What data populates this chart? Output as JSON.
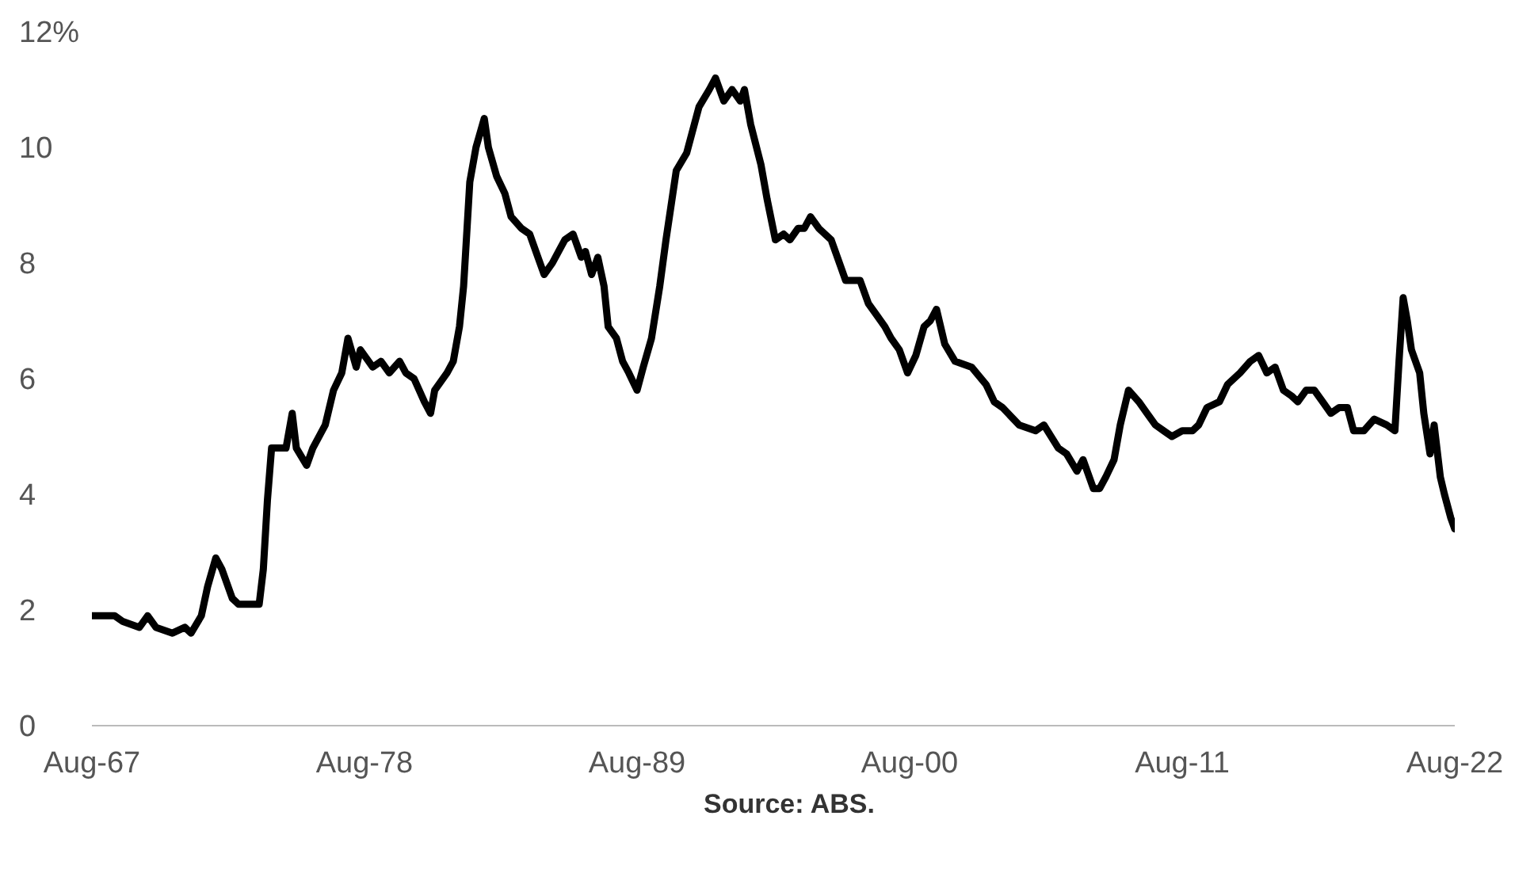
{
  "chart_data": {
    "type": "line",
    "annotations": [
      "Source: ABS."
    ],
    "x": [
      "1967-08",
      "1967-12",
      "1968-07",
      "1968-11",
      "1969-07",
      "1969-11",
      "1970-03",
      "1970-11",
      "1971-05",
      "1971-08",
      "1972-01",
      "1972-04",
      "1972-08",
      "1972-11",
      "1973-04",
      "1973-07",
      "1974-05",
      "1974-07",
      "1974-09",
      "1974-11",
      "1975-06",
      "1975-09",
      "1975-11",
      "1976-04",
      "1976-07",
      "1977-01",
      "1977-05",
      "1977-09",
      "1977-12",
      "1978-04",
      "1978-06",
      "1978-12",
      "1979-04",
      "1979-08",
      "1980-01",
      "1980-04",
      "1980-08",
      "1981-01",
      "1981-04",
      "1981-06",
      "1981-12",
      "1982-03",
      "1982-06",
      "1982-08",
      "1982-11",
      "1983-02",
      "1983-06",
      "1983-08",
      "1983-12",
      "1984-04",
      "1984-07",
      "1984-12",
      "1985-04",
      "1985-08",
      "1985-11",
      "1986-03",
      "1986-06",
      "1986-09",
      "1987-01",
      "1987-05",
      "1987-07",
      "1987-10",
      "1988-01",
      "1988-04",
      "1988-06",
      "1988-10",
      "1989-01",
      "1989-04",
      "1989-08",
      "1989-11",
      "1990-03",
      "1990-07",
      "1990-10",
      "1991-03",
      "1991-08",
      "1992-02",
      "1992-07",
      "1992-10",
      "1993-02",
      "1993-06",
      "1993-10",
      "1993-12",
      "1994-03",
      "1994-08",
      "1994-11",
      "1995-03",
      "1995-07",
      "1995-10",
      "1996-02",
      "1996-05",
      "1996-08",
      "1996-12",
      "1997-03",
      "1997-06",
      "1997-10",
      "1998-01",
      "1998-08",
      "1998-12",
      "1999-04",
      "1999-08",
      "1999-11",
      "2000-03",
      "2000-07",
      "2000-11",
      "2001-03",
      "2001-06",
      "2001-09",
      "2002-01",
      "2002-06",
      "2003-02",
      "2003-09",
      "2004-01",
      "2004-05",
      "2005-01",
      "2005-09",
      "2006-01",
      "2006-08",
      "2006-12",
      "2007-05",
      "2007-08",
      "2008-01",
      "2008-04",
      "2008-07",
      "2008-11",
      "2009-02",
      "2009-06",
      "2009-11",
      "2010-03",
      "2010-07",
      "2010-11",
      "2011-03",
      "2011-08",
      "2012-01",
      "2012-04",
      "2012-08",
      "2013-02",
      "2013-06",
      "2013-12",
      "2014-05",
      "2014-09",
      "2015-01",
      "2015-05",
      "2015-09",
      "2016-01",
      "2016-04",
      "2016-08",
      "2016-12",
      "2017-04",
      "2017-08",
      "2017-12",
      "2018-04",
      "2018-07",
      "2018-12",
      "2019-05",
      "2019-11",
      "2020-03",
      "2020-05",
      "2020-07",
      "2020-09",
      "2020-11",
      "2021-03",
      "2021-05",
      "2021-08",
      "2021-10",
      "2022-01",
      "2022-03",
      "2022-06",
      "2022-08"
    ],
    "series": [
      {
        "color": "#000000",
        "values": [
          1.9,
          1.9,
          1.9,
          1.8,
          1.7,
          1.9,
          1.7,
          1.6,
          1.7,
          1.6,
          1.9,
          2.4,
          2.9,
          2.7,
          2.2,
          2.1,
          2.1,
          2.7,
          3.9,
          4.8,
          4.8,
          5.4,
          4.8,
          4.5,
          4.8,
          5.2,
          5.8,
          6.1,
          6.7,
          6.2,
          6.5,
          6.2,
          6.3,
          6.1,
          6.3,
          6.1,
          6.0,
          5.6,
          5.4,
          5.8,
          6.1,
          6.3,
          6.9,
          7.6,
          9.4,
          10.0,
          10.5,
          10.0,
          9.5,
          9.2,
          8.8,
          8.6,
          8.5,
          8.1,
          7.8,
          8.0,
          8.2,
          8.4,
          8.5,
          8.1,
          8.2,
          7.8,
          8.1,
          7.6,
          6.9,
          6.7,
          6.3,
          6.1,
          5.8,
          6.2,
          6.7,
          7.6,
          8.4,
          9.6,
          9.9,
          10.7,
          11.0,
          11.2,
          10.8,
          11.0,
          10.8,
          11.0,
          10.4,
          9.7,
          9.1,
          8.4,
          8.5,
          8.4,
          8.6,
          8.6,
          8.8,
          8.6,
          8.5,
          8.4,
          8.0,
          7.7,
          7.7,
          7.3,
          7.1,
          6.9,
          6.7,
          6.5,
          6.1,
          6.4,
          6.9,
          7.0,
          7.2,
          6.6,
          6.3,
          6.2,
          5.9,
          5.6,
          5.5,
          5.2,
          5.1,
          5.2,
          4.8,
          4.7,
          4.4,
          4.6,
          4.1,
          4.1,
          4.3,
          4.6,
          5.2,
          5.8,
          5.6,
          5.4,
          5.2,
          5.1,
          5.0,
          5.1,
          5.1,
          5.2,
          5.5,
          5.6,
          5.9,
          6.1,
          6.3,
          6.4,
          6.1,
          6.2,
          5.8,
          5.7,
          5.6,
          5.8,
          5.8,
          5.6,
          5.4,
          5.5,
          5.5,
          5.1,
          5.1,
          5.3,
          5.2,
          5.1,
          6.3,
          7.4,
          7.0,
          6.5,
          6.1,
          5.4,
          4.7,
          5.2,
          4.3,
          4.0,
          3.6,
          3.4
        ]
      }
    ],
    "xlim": [
      "1967-08",
      "2022-08"
    ],
    "xticks": [
      {
        "value": "1967-08",
        "label": "Aug-67"
      },
      {
        "value": "1978-08",
        "label": "Aug-78"
      },
      {
        "value": "1989-08",
        "label": "Aug-89"
      },
      {
        "value": "2000-08",
        "label": "Aug-00"
      },
      {
        "value": "2011-08",
        "label": "Aug-11"
      },
      {
        "value": "2022-08",
        "label": "Aug-22"
      }
    ],
    "ylim": [
      0,
      12
    ],
    "yticks": [
      0,
      2,
      4,
      6,
      8,
      10,
      {
        "value": 12,
        "label": "12%"
      }
    ],
    "grid": false,
    "legend": false,
    "marker": "none",
    "line_style": "solid"
  }
}
